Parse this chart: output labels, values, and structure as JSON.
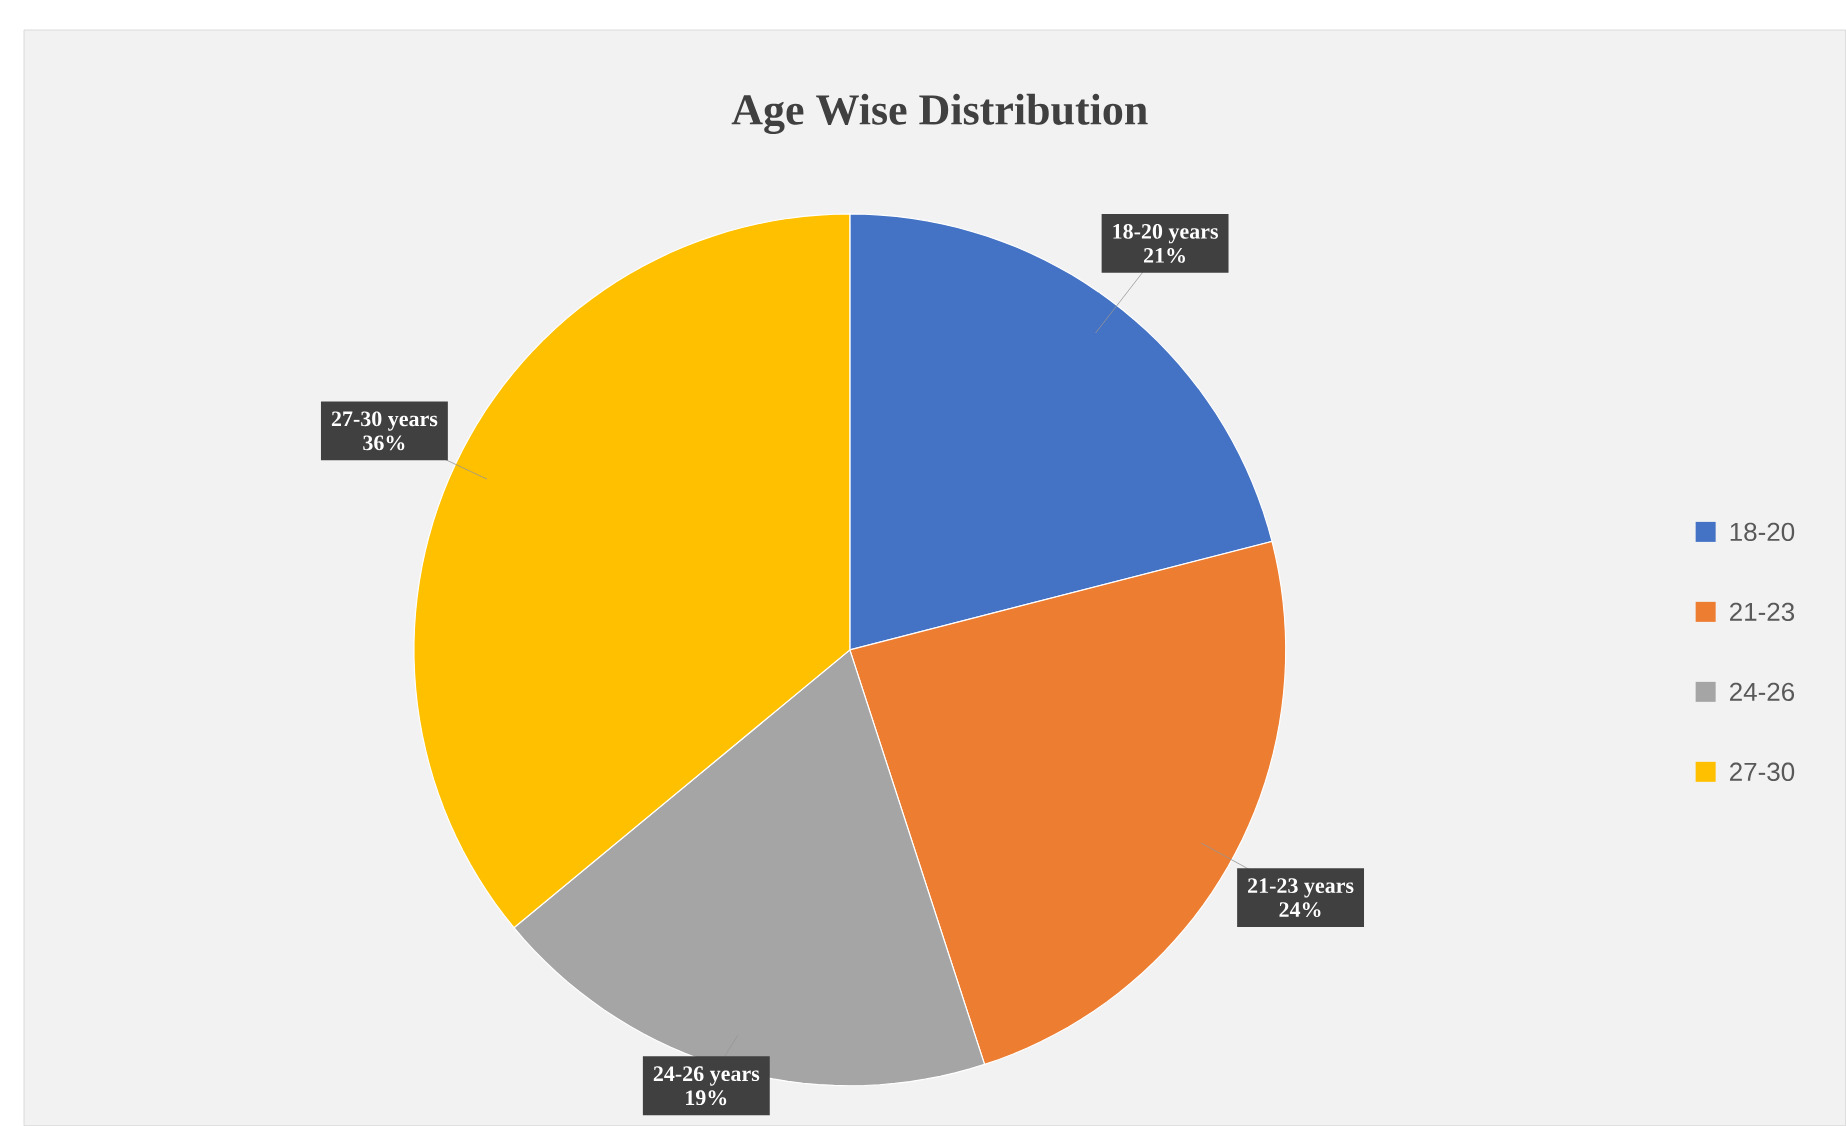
{
  "chart_data": {
    "type": "pie",
    "title": "Age Wise Distribution",
    "categories": [
      "18-20",
      "21-23",
      "24-26",
      "27-30"
    ],
    "values": [
      21,
      24,
      19,
      36
    ],
    "colors": [
      "#4472c4",
      "#ed7d31",
      "#a5a5a5",
      "#ffc000"
    ],
    "value_labels": [
      "21%",
      "24%",
      "19%",
      "36%"
    ],
    "annotations": [
      "18-20 years",
      "21-23 years",
      "24-26 years",
      "27-30 years"
    ],
    "legend": "right"
  }
}
